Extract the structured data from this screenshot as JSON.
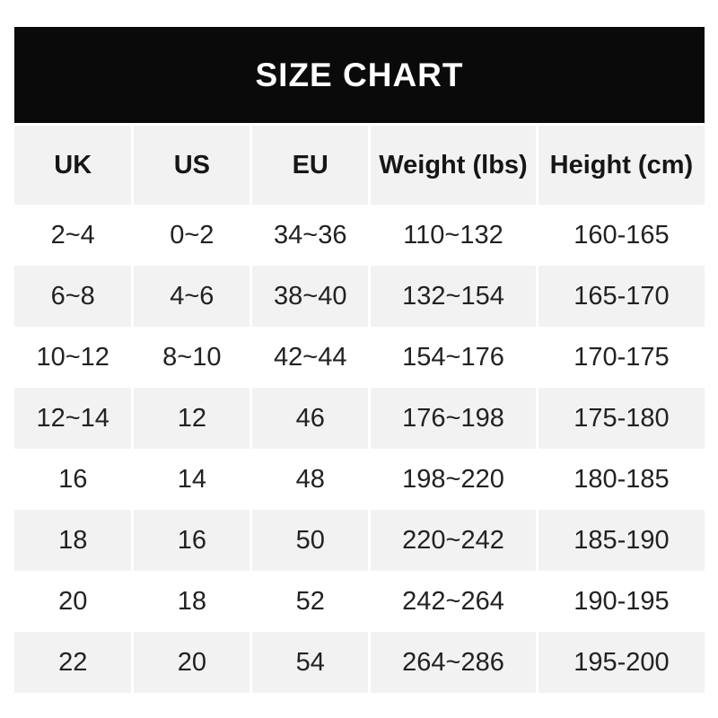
{
  "title": "SIZE CHART",
  "chart_data": {
    "type": "table",
    "title": "SIZE CHART",
    "columns": [
      "UK",
      "US",
      "EU",
      "Weight (lbs)",
      "Height (cm)"
    ],
    "rows": [
      [
        "2~4",
        "0~2",
        "34~36",
        "110~132",
        "160-165"
      ],
      [
        "6~8",
        "4~6",
        "38~40",
        "132~154",
        "165-170"
      ],
      [
        "10~12",
        "8~10",
        "42~44",
        "154~176",
        "170-175"
      ],
      [
        "12~14",
        "12",
        "46",
        "176~198",
        "175-180"
      ],
      [
        "16",
        "14",
        "48",
        "198~220",
        "180-185"
      ],
      [
        "18",
        "16",
        "50",
        "220~242",
        "185-190"
      ],
      [
        "20",
        "18",
        "52",
        "242~264",
        "190-195"
      ],
      [
        "22",
        "20",
        "54",
        "264~286",
        "195-200"
      ]
    ]
  },
  "colors": {
    "title_bar_bg": "#0a0a0a",
    "title_text": "#ffffff",
    "row_alt_bg": "#f2f2f2",
    "row_bg": "#ffffff",
    "cell_text": "#222222",
    "header_text": "#161616",
    "separator": "#ffffff",
    "page_bg": "#ffffff"
  }
}
